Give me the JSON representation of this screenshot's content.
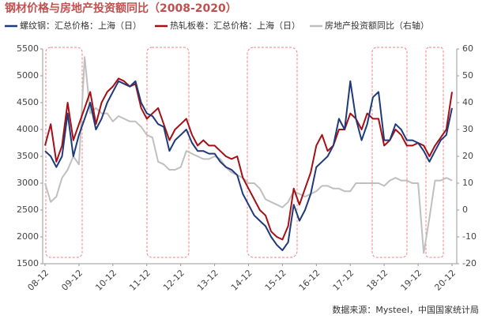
{
  "chart_data": {
    "type": "line",
    "title": "钢材价格与房地产投资额同比（2008-2020）",
    "source": "数据来源：Mysteel，中国国家统计局",
    "categories": [
      "08-12",
      null,
      null,
      null,
      null,
      null,
      "09-12",
      null,
      null,
      null,
      null,
      null,
      "10-12",
      null,
      null,
      null,
      null,
      null,
      "11-12",
      null,
      null,
      null,
      null,
      null,
      "12-12",
      null,
      null,
      null,
      null,
      null,
      "13-12",
      null,
      null,
      null,
      null,
      null,
      "14-12",
      null,
      null,
      null,
      null,
      null,
      "15-12",
      null,
      null,
      null,
      null,
      null,
      "16-12",
      null,
      null,
      null,
      null,
      null,
      "17-12",
      null,
      null,
      null,
      null,
      null,
      "18-12",
      null,
      null,
      null,
      null,
      null,
      "19-12",
      null,
      null,
      null,
      null,
      null,
      "20-12"
    ],
    "ylim": [
      1500,
      5500
    ],
    "yticks": [
      1500,
      2000,
      2500,
      3000,
      3500,
      4000,
      4500,
      5000,
      5500
    ],
    "y2lim": [
      -20,
      60
    ],
    "y2ticks": [
      -20,
      -10,
      0,
      10,
      20,
      30,
      40,
      50,
      60
    ],
    "series": [
      {
        "name": "螺纹钢：汇总价格：上海（日）",
        "color": "#1f3a7a",
        "values": [
          3600,
          3500,
          3300,
          3500,
          4300,
          3500,
          3900,
          4200,
          4500,
          4000,
          4200,
          4500,
          4700,
          4900,
          4850,
          4800,
          4900,
          4500,
          4300,
          4250,
          4100,
          4050,
          3600,
          3800,
          3900,
          4000,
          3750,
          3600,
          3600,
          3550,
          3550,
          3400,
          3300,
          3250,
          3150,
          2800,
          2600,
          2400,
          2300,
          2200,
          2000,
          1850,
          1750,
          1900,
          2600,
          2300,
          2500,
          2800,
          3300,
          3400,
          3500,
          3700,
          4200,
          4000,
          4900,
          4200,
          3800,
          4100,
          4600,
          4700,
          3800,
          3800,
          4100,
          4000,
          3800,
          3800,
          3750,
          3600,
          3400,
          3600,
          3800,
          3900,
          4400
        ]
      },
      {
        "name": "热轧板卷：汇总价格：上海（日）",
        "color": "#a50f15",
        "values": [
          3700,
          4100,
          3400,
          3700,
          4500,
          3800,
          4100,
          4400,
          4700,
          4100,
          4500,
          4700,
          4800,
          4950,
          4900,
          4800,
          4850,
          4400,
          4200,
          4300,
          4400,
          4100,
          3800,
          4000,
          4100,
          4200,
          3900,
          3700,
          3800,
          3700,
          3700,
          3600,
          3500,
          3450,
          3500,
          3100,
          2900,
          2700,
          2500,
          2400,
          2100,
          2000,
          1950,
          2200,
          2900,
          2600,
          2900,
          3200,
          3700,
          3900,
          3600,
          3700,
          4000,
          4000,
          4300,
          4200,
          4000,
          4300,
          4200,
          4200,
          3700,
          3800,
          4000,
          3900,
          3700,
          3700,
          3750,
          3700,
          3500,
          3700,
          3850,
          4000,
          4700
        ]
      },
      {
        "name": "房地产投资额同比（右轴）",
        "color": "#bfbfbf",
        "axis": "y2",
        "values": [
          10,
          3,
          5,
          12,
          15,
          20,
          17,
          57,
          36,
          38,
          36,
          36,
          33,
          35,
          34,
          33,
          33,
          31,
          28,
          27,
          18,
          17,
          15,
          15,
          16,
          22,
          21,
          20,
          19,
          19,
          20,
          19,
          16,
          14,
          13,
          12,
          10,
          10,
          8,
          4,
          3,
          2,
          1,
          3,
          7,
          6,
          5,
          6,
          7,
          9,
          9,
          8,
          8,
          7,
          7,
          10,
          10,
          10,
          10,
          10,
          9,
          11,
          12,
          11,
          11,
          10,
          10,
          -16,
          -3,
          11,
          11,
          12,
          11
        ]
      }
    ]
  }
}
